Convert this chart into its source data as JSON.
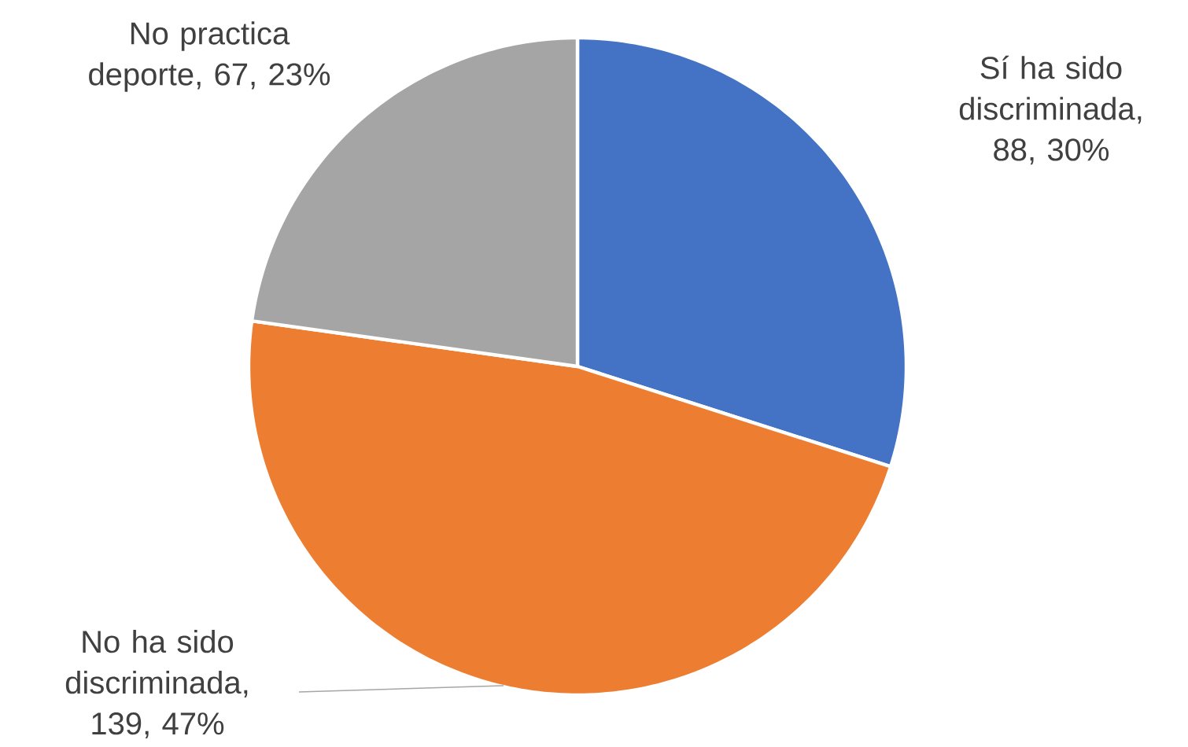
{
  "chart_data": {
    "type": "pie",
    "categories": [
      "Sí ha sido discriminada",
      "No ha sido discriminada",
      "No practica deporte"
    ],
    "values": [
      88,
      139,
      67
    ],
    "value_labels": [
      ", 88, 30%",
      ", 139, 47%",
      ", 67, 23%"
    ],
    "colors": [
      "#4472c4",
      "#ed7d31",
      "#a5a5a5"
    ]
  }
}
